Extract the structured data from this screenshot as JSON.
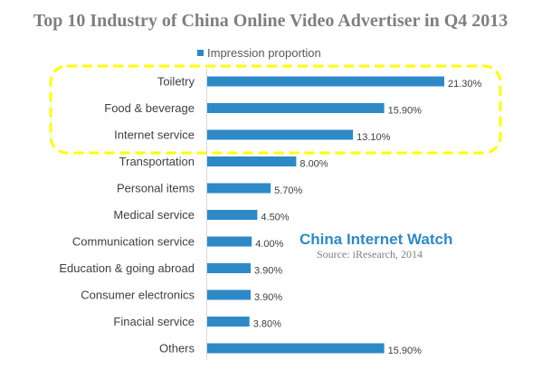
{
  "colors": {
    "bar": "#2e89c7",
    "highlight": "#ffff00",
    "title": "#7f7f7f",
    "watermark": "#2e89c7"
  },
  "chart_data": {
    "type": "bar",
    "orientation": "horizontal",
    "title": "Top 10 Industry of China Online Video Advertiser in Q4 2013",
    "legend": {
      "position": "top",
      "entries": [
        "Impression proportion"
      ]
    },
    "categories": [
      "Toiletry",
      "Food & beverage",
      "Internet service",
      "Transportation",
      "Personal items",
      "Medical service",
      "Communication service",
      "Education & going abroad",
      "Consumer electronics",
      "Finacial service",
      "Others"
    ],
    "series": [
      {
        "name": "Impression proportion",
        "values": [
          21.3,
          15.9,
          13.1,
          8.0,
          5.7,
          4.5,
          4.0,
          3.9,
          3.9,
          3.8,
          15.9
        ],
        "labels": [
          "21.30%",
          "15.90%",
          "13.10%",
          "8.00%",
          "5.70%",
          "4.50%",
          "4.00%",
          "3.90%",
          "3.90%",
          "3.80%",
          "15.90%"
        ]
      }
    ],
    "xlim": [
      0,
      21.3
    ],
    "grid": false,
    "highlighted_categories": [
      "Toiletry",
      "Food & beverage",
      "Internet service"
    ]
  },
  "watermark": {
    "title": "China Internet Watch",
    "source": "Source: iResearch, 2014"
  }
}
